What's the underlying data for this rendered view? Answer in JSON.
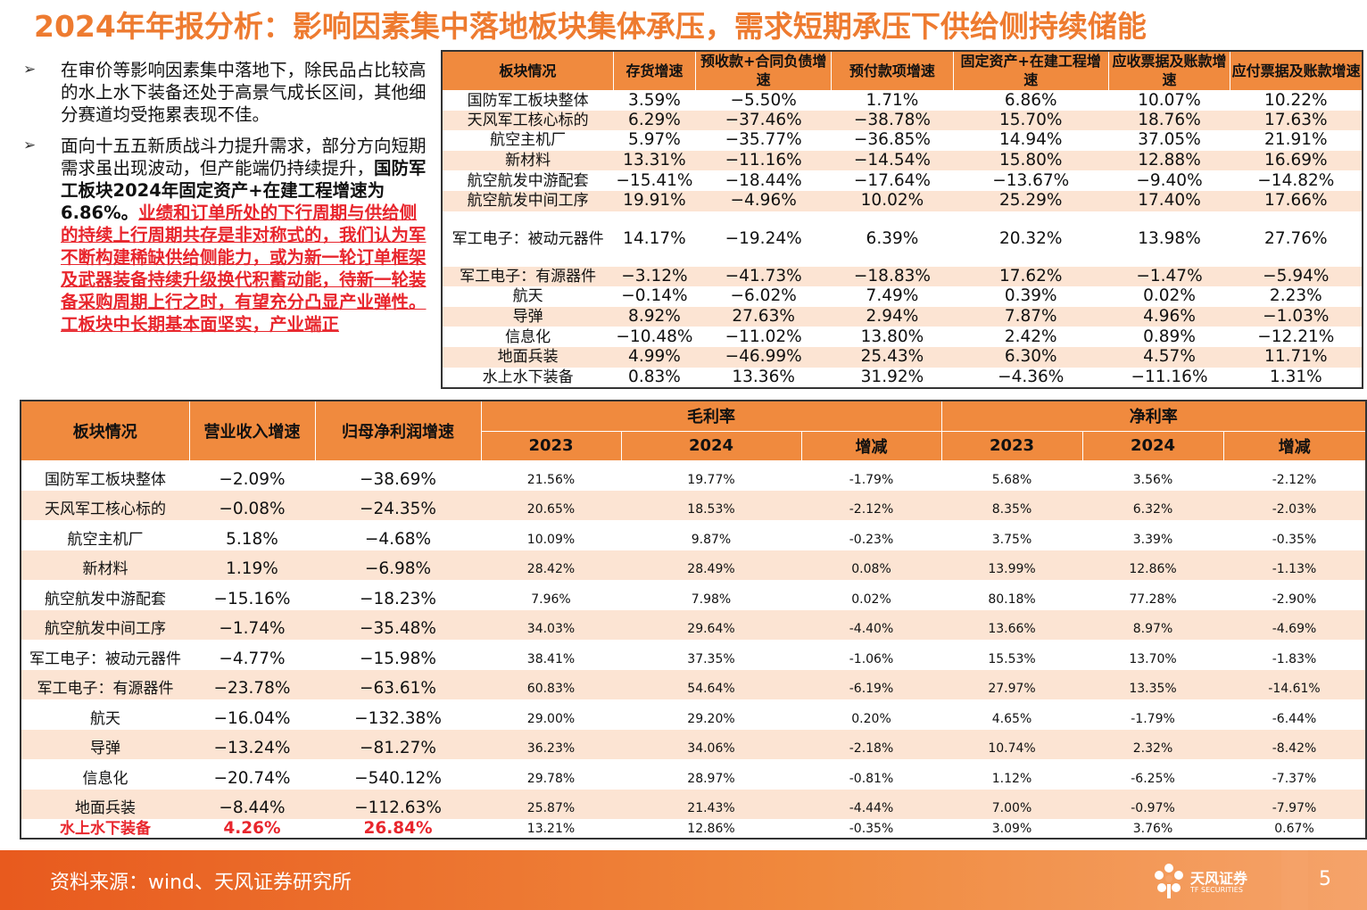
{
  "title": "2024年年报分析：影响因素集中落地板块集体承压，需求短期承压下供给侧持续储能",
  "bullets": {
    "b1": "在审价等影响因素集中落地下，除民品占比较高的水上水下装备还处于高景气成长区间，其他细分赛道均受拖累表现不佳。",
    "b2_normal": "面向十五五新质战斗力提升需求，部分方向短期需求虽出现波动，但产能端仍持续提升，",
    "b2_bold": "国防军工板块2024年固定资产+在建工程增速为6.86%。",
    "b2_red": "业绩和订单所处的下行周期与供给侧的持续上行周期共存是非对称式的，我们认为军不断构建稀缺供给侧能力，或为新一轮订单框架及武器装备持续升级换代积蓄动能，待新一轮装备采购周期上行之时，有望充分凸显产业弹性。工板块中长期基本面坚实，产业端正"
  },
  "table1": {
    "headers": [
      "板块情况",
      "存货增速",
      "预收款+合同负债增速",
      "预付款项增速",
      "固定资产+在建工程增速",
      "应收票据及账款增速",
      "应付票据及账款增速"
    ],
    "rows": [
      [
        "国防军工板块整体",
        "3.59%",
        "−5.50%",
        "1.71%",
        "6.86%",
        "10.07%",
        "10.22%"
      ],
      [
        "天风军工核心标的",
        "6.29%",
        "−37.46%",
        "−38.78%",
        "15.70%",
        "18.76%",
        "17.63%"
      ],
      [
        "航空主机厂",
        "5.97%",
        "−35.77%",
        "−36.85%",
        "14.94%",
        "37.05%",
        "21.91%"
      ],
      [
        "新材料",
        "13.31%",
        "−11.16%",
        "−14.54%",
        "15.80%",
        "12.88%",
        "16.69%"
      ],
      [
        "航空航发中游配套",
        "−15.41%",
        "−18.44%",
        "−17.64%",
        "−13.67%",
        "−9.40%",
        "−14.82%"
      ],
      [
        "航空航发中间工序",
        "19.91%",
        "−4.96%",
        "10.02%",
        "25.29%",
        "17.40%",
        "17.66%"
      ],
      [
        "军工电子：被动元器件",
        "14.17%",
        "−19.24%",
        "6.39%",
        "20.32%",
        "13.98%",
        "27.76%"
      ],
      [
        "军工电子：有源器件",
        "−3.12%",
        "−41.73%",
        "−18.83%",
        "17.62%",
        "−1.47%",
        "−5.94%"
      ],
      [
        "航天",
        "−0.14%",
        "−6.02%",
        "7.49%",
        "0.39%",
        "0.02%",
        "2.23%"
      ],
      [
        "导弹",
        "8.92%",
        "27.63%",
        "2.94%",
        "7.87%",
        "4.96%",
        "−1.03%"
      ],
      [
        "信息化",
        "−10.48%",
        "−11.02%",
        "13.80%",
        "2.42%",
        "0.89%",
        "−12.21%"
      ],
      [
        "地面兵装",
        "4.99%",
        "−46.99%",
        "25.43%",
        "6.30%",
        "4.57%",
        "11.71%"
      ],
      [
        "水上水下装备",
        "0.83%",
        "13.36%",
        "31.92%",
        "−4.36%",
        "−11.16%",
        "1.31%"
      ]
    ]
  },
  "table2": {
    "headers": {
      "sector": "板块情况",
      "revenue": "营业收入增速",
      "net_profit": "归母净利润增速",
      "gross_margin": "毛利率",
      "net_margin": "净利率",
      "y2023": "2023",
      "y2024": "2024",
      "change": "增减"
    },
    "rows": [
      [
        "国防军工板块整体",
        "−2.09%",
        "−38.69%",
        "21.56%",
        "19.77%",
        "-1.79%",
        "5.68%",
        "3.56%",
        "-2.12%"
      ],
      [
        "天风军工核心标的",
        "−0.08%",
        "−24.35%",
        "20.65%",
        "18.53%",
        "-2.12%",
        "8.35%",
        "6.32%",
        "-2.03%"
      ],
      [
        "航空主机厂",
        "5.18%",
        "−4.68%",
        "10.09%",
        "9.87%",
        "-0.23%",
        "3.75%",
        "3.39%",
        "-0.35%"
      ],
      [
        "新材料",
        "1.19%",
        "−6.98%",
        "28.42%",
        "28.49%",
        "0.08%",
        "13.99%",
        "12.86%",
        "-1.13%"
      ],
      [
        "航空航发中游配套",
        "−15.16%",
        "−18.23%",
        "7.96%",
        "7.98%",
        "0.02%",
        "80.18%",
        "77.28%",
        "-2.90%"
      ],
      [
        "航空航发中间工序",
        "−1.74%",
        "−35.48%",
        "34.03%",
        "29.64%",
        "-4.40%",
        "13.66%",
        "8.97%",
        "-4.69%"
      ],
      [
        "军工电子：被动元器件",
        "−4.77%",
        "−15.98%",
        "38.41%",
        "37.35%",
        "-1.06%",
        "15.53%",
        "13.70%",
        "-1.83%"
      ],
      [
        "军工电子：有源器件",
        "−23.78%",
        "−63.61%",
        "60.83%",
        "54.64%",
        "-6.19%",
        "27.97%",
        "13.35%",
        "-14.61%"
      ],
      [
        "航天",
        "−16.04%",
        "−132.38%",
        "29.00%",
        "29.20%",
        "0.20%",
        "4.65%",
        "-1.79%",
        "-6.44%"
      ],
      [
        "导弹",
        "−13.24%",
        "−81.27%",
        "36.23%",
        "34.06%",
        "-2.18%",
        "10.74%",
        "2.32%",
        "-8.42%"
      ],
      [
        "信息化",
        "−20.74%",
        "−540.12%",
        "29.78%",
        "28.97%",
        "-0.81%",
        "1.12%",
        "-6.25%",
        "-7.37%"
      ],
      [
        "地面兵装",
        "−8.44%",
        "−112.63%",
        "25.87%",
        "21.43%",
        "-4.44%",
        "7.00%",
        "-0.97%",
        "-7.97%"
      ],
      [
        "水上水下装备",
        "4.26%",
        "26.84%",
        "13.21%",
        "12.86%",
        "-0.35%",
        "3.09%",
        "3.76%",
        "0.67%"
      ]
    ]
  },
  "footer": {
    "source": "资料来源：wind、天风证券研究所",
    "logo_cn": "天风证券",
    "logo_en": "TF SECURITIES",
    "page_number": "5",
    "logo_icon": "flower-logo-icon"
  },
  "colors": {
    "accent": "#EE7B30",
    "header_fill": "#F08A3E",
    "row_alt": "#FCE4D3",
    "highlight_red": "#E8262D"
  }
}
